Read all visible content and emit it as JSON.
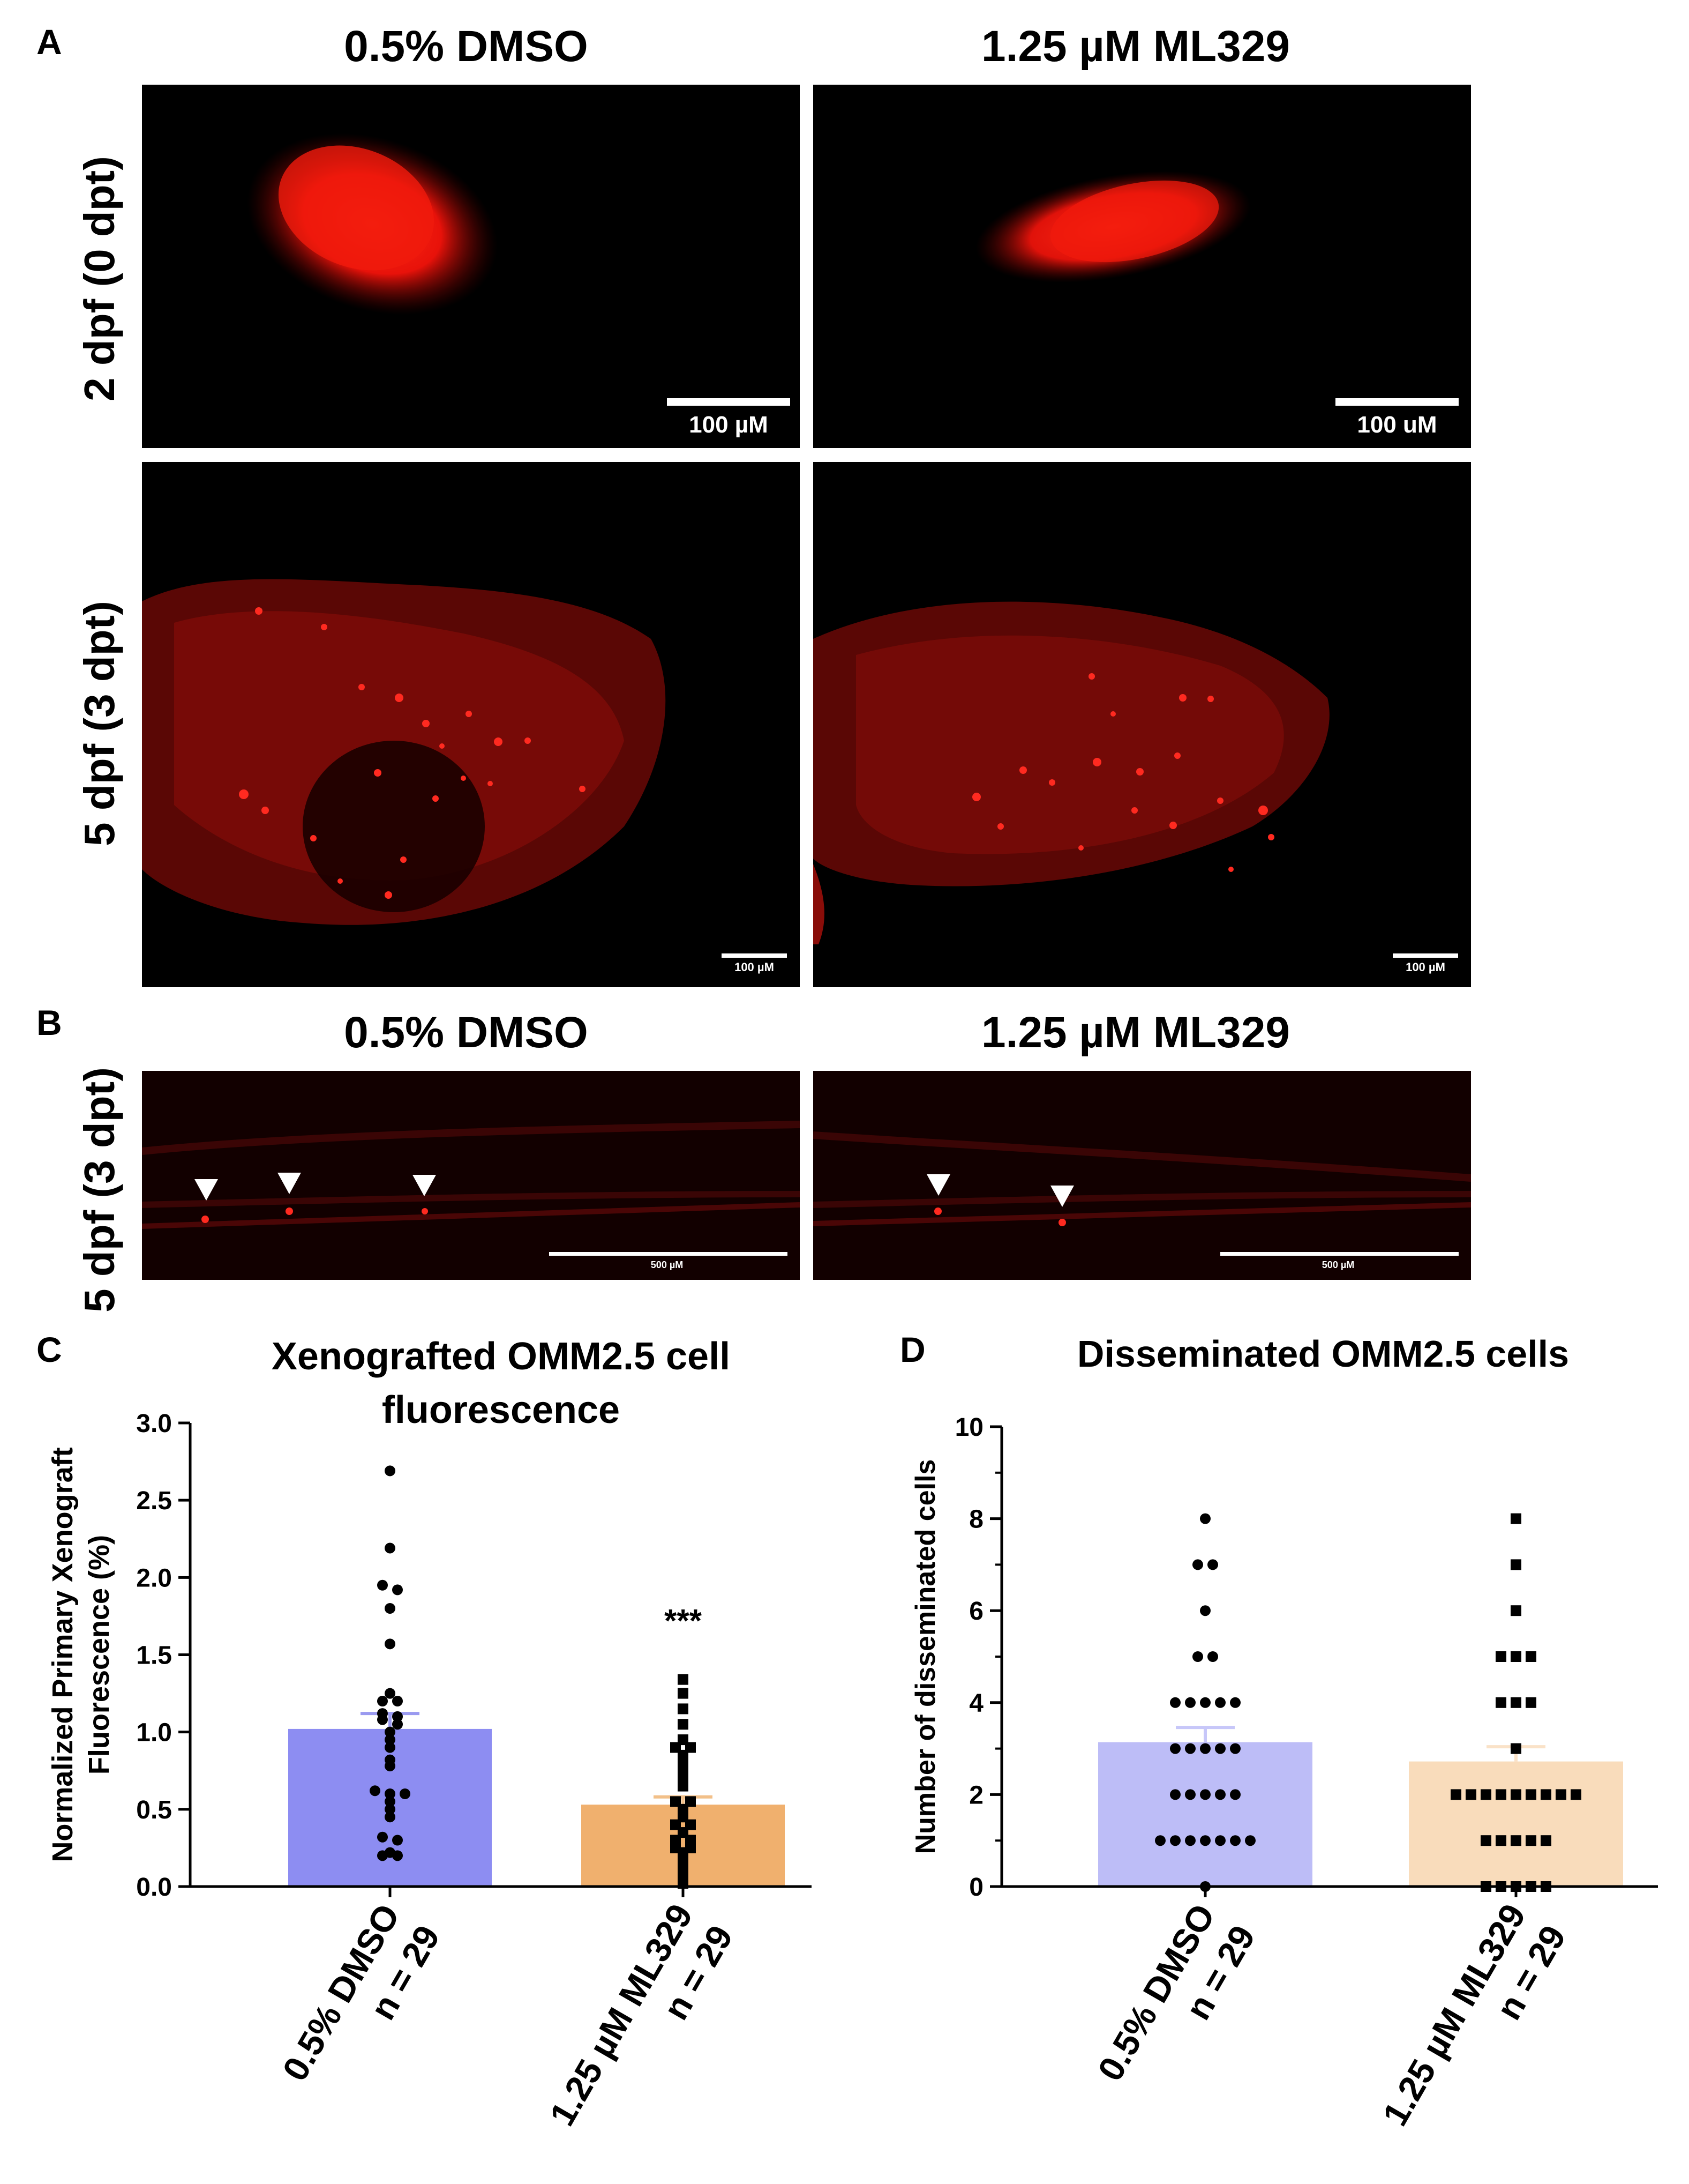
{
  "panels": {
    "a_letter": "A",
    "b_letter": "B",
    "c_letter": "C",
    "d_letter": "D"
  },
  "panel_a": {
    "col_left": "0.5% DMSO",
    "col_right": "1.25 µM ML329",
    "row_top": "2 dpf (0 dpt)",
    "row_bottom": "5 dpf (3 dpt)",
    "scale_top_left": "100 µM",
    "scale_top_right": "100 uM",
    "scale_bottom_left": "100 µM",
    "scale_bottom_right": "100 µM"
  },
  "panel_b": {
    "col_left": "0.5% DMSO",
    "col_right": "1.25 µM ML329",
    "row_label": "5 dpf (3 dpt)",
    "scale_left": "500 µM",
    "scale_right": "500 µM"
  },
  "chart_data": [
    {
      "type": "bar",
      "title_line1": "Xenografted OMM2.5 cell",
      "title_line2": "fluorescence",
      "ylabel_line1": "Normalized Primary Xenograft",
      "ylabel_line2": "Fluorescence (%)",
      "ylim": [
        0,
        3.0
      ],
      "yticks": [
        "0.0",
        "0.5",
        "1.0",
        "1.5",
        "2.0",
        "2.5",
        "3.0"
      ],
      "categories": [
        {
          "line1": "0.5% DMSO",
          "line2": "n = 29"
        },
        {
          "line1": "1.25 µM ML329",
          "line2": "n = 29"
        }
      ],
      "values": [
        1.02,
        0.53
      ],
      "errors": [
        0.1,
        0.05
      ],
      "significance": "***",
      "bar_colors": [
        "#8d8df2",
        "#f0b06e"
      ],
      "points": [
        [
          2.69,
          2.19,
          1.95,
          1.92,
          1.8,
          1.57,
          1.25,
          1.2,
          1.2,
          1.12,
          1.1,
          1.08,
          1.05,
          1.0,
          0.95,
          0.9,
          0.82,
          0.78,
          0.62,
          0.6,
          0.6,
          0.55,
          0.5,
          0.45,
          0.32,
          0.3,
          0.22,
          0.2,
          0.2
        ],
        [
          1.34,
          1.25,
          1.15,
          1.05,
          0.95,
          0.9,
          0.9,
          0.85,
          0.8,
          0.75,
          0.7,
          0.65,
          0.55,
          0.55,
          0.5,
          0.45,
          0.4,
          0.4,
          0.35,
          0.3,
          0.3,
          0.25,
          0.25,
          0.22,
          0.2,
          0.15,
          0.1,
          0.08,
          0.02
        ]
      ]
    },
    {
      "type": "bar",
      "title": "Disseminated OMM2.5 cells",
      "ylabel": "Number of disseminated cells",
      "ylim": [
        0,
        10
      ],
      "yticks": [
        "0",
        "2",
        "4",
        "6",
        "8",
        "10"
      ],
      "categories": [
        {
          "line1": "0.5% DMSO",
          "line2": "n = 29"
        },
        {
          "line1": "1.25 µM ML329",
          "line2": "n = 29"
        }
      ],
      "values": [
        3.14,
        2.72
      ],
      "errors": [
        0.32,
        0.32
      ],
      "bar_colors": [
        "#bdbdf7",
        "#f9dcbb"
      ],
      "points": [
        [
          8,
          7,
          7,
          6,
          5,
          5,
          4,
          4,
          4,
          4,
          4,
          3,
          3,
          3,
          3,
          3,
          2,
          2,
          2,
          2,
          2,
          1,
          1,
          1,
          1,
          1,
          1,
          1,
          0
        ],
        [
          8,
          7,
          6,
          5,
          5,
          5,
          4,
          4,
          4,
          3,
          2,
          2,
          2,
          2,
          2,
          2,
          2,
          2,
          2,
          1,
          1,
          1,
          1,
          1,
          0,
          0,
          0,
          0,
          0
        ]
      ]
    }
  ]
}
